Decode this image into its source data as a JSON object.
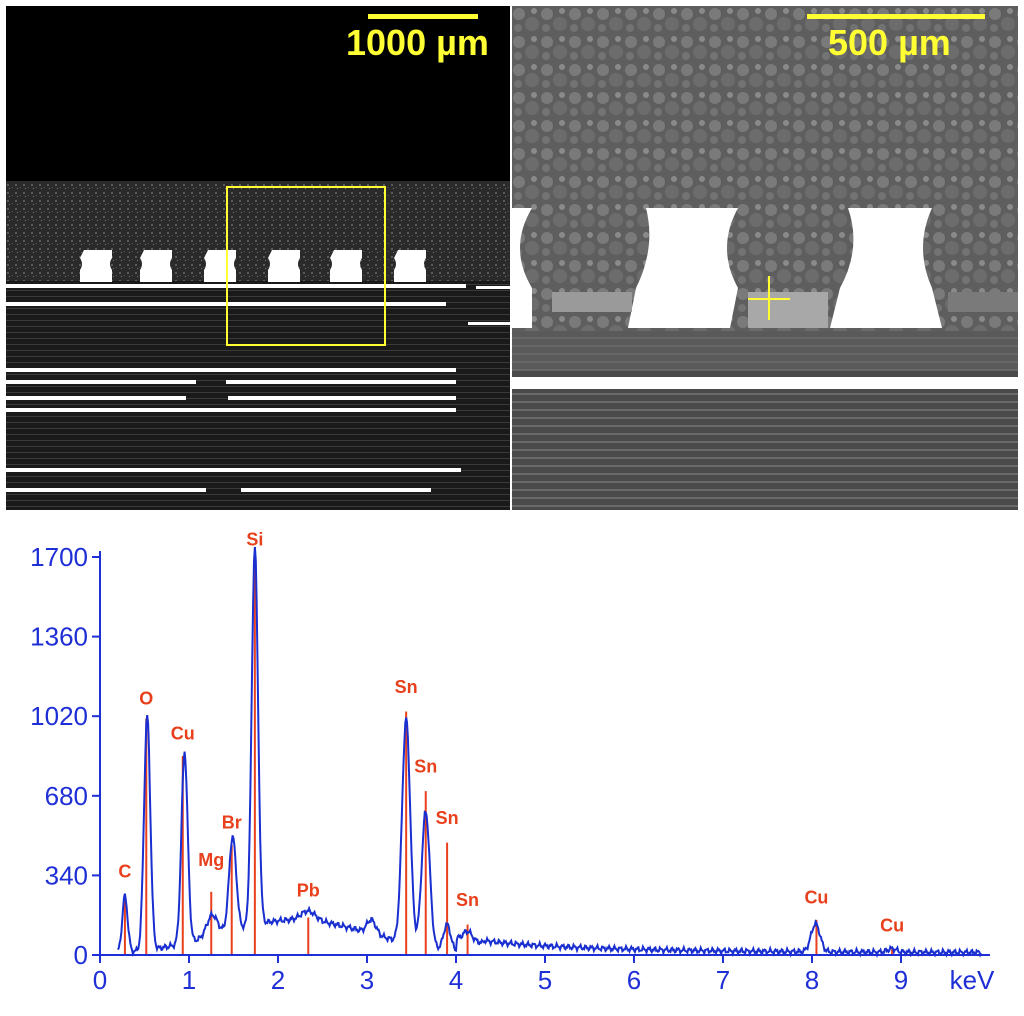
{
  "micrographs": {
    "left": {
      "scale_bar_label": "1000 µm"
    },
    "right": {
      "scale_bar_label": "500 µm"
    }
  },
  "colors": {
    "axis": "#1f2fd6",
    "spectrum": "#1a2fd0",
    "marker": "#e8401c",
    "scale_bar": "#ffff33"
  },
  "chart_data": {
    "type": "line",
    "title": "",
    "xlabel": "keV",
    "ylabel": "",
    "xlim": [
      0,
      10
    ],
    "ylim": [
      0,
      1700
    ],
    "x_ticks": [
      0,
      1,
      2,
      3,
      4,
      5,
      6,
      7,
      8,
      9
    ],
    "y_ticks": [
      0,
      340,
      680,
      1020,
      1360,
      1700
    ],
    "grid": false,
    "baseline": 0,
    "peaks": [
      {
        "center": 0.28,
        "height": 240,
        "width": 0.03
      },
      {
        "center": 0.53,
        "height": 1000,
        "width": 0.035
      },
      {
        "center": 0.95,
        "height": 820,
        "width": 0.035
      },
      {
        "center": 1.26,
        "height": 90,
        "width": 0.06
      },
      {
        "center": 1.49,
        "height": 400,
        "width": 0.04
      },
      {
        "center": 1.74,
        "height": 1620,
        "width": 0.035
      },
      {
        "center": 2.34,
        "height": 40,
        "width": 0.08
      },
      {
        "center": 3.05,
        "height": 60,
        "width": 0.05
      },
      {
        "center": 3.44,
        "height": 960,
        "width": 0.045
      },
      {
        "center": 3.66,
        "height": 580,
        "width": 0.045
      },
      {
        "center": 3.9,
        "height": 110,
        "width": 0.04
      },
      {
        "center": 4.13,
        "height": 40,
        "width": 0.05
      },
      {
        "center": 8.04,
        "height": 120,
        "width": 0.05
      },
      {
        "center": 8.9,
        "height": 15,
        "width": 0.05
      }
    ],
    "markers": [
      {
        "label": "C",
        "energy": 0.28,
        "height": 250,
        "label_counts": 330
      },
      {
        "label": "O",
        "energy": 0.52,
        "height": 1010,
        "label_counts": 1070
      },
      {
        "label": "Cu",
        "energy": 0.93,
        "height": 850,
        "label_counts": 920
      },
      {
        "label": "Mg",
        "energy": 1.25,
        "height": 270,
        "label_counts": 380
      },
      {
        "label": "Br",
        "energy": 1.48,
        "height": 470,
        "label_counts": 540
      },
      {
        "label": "Si",
        "energy": 1.74,
        "height": 1680,
        "label_counts": 1750
      },
      {
        "label": "Pb",
        "energy": 2.34,
        "height": 160,
        "label_counts": 250
      },
      {
        "label": "Sn",
        "energy": 3.44,
        "height": 1040,
        "label_counts": 1120
      },
      {
        "label": "Sn",
        "energy": 3.66,
        "height": 700,
        "label_counts": 780
      },
      {
        "label": "Sn",
        "energy": 3.9,
        "height": 480,
        "label_counts": 560
      },
      {
        "label": "Sn",
        "energy": 4.13,
        "height": 130,
        "label_counts": 210
      },
      {
        "label": "Cu",
        "energy": 8.05,
        "height": 150,
        "label_counts": 220
      },
      {
        "label": "Cu",
        "energy": 8.9,
        "height": 25,
        "label_counts": 100
      }
    ]
  }
}
